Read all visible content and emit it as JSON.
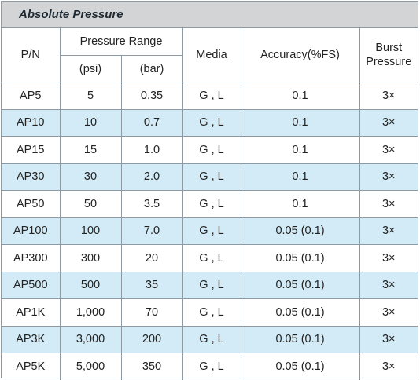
{
  "title": "Absolute Pressure",
  "headers": {
    "pn": "P/N",
    "pressure_range": "Pressure Range",
    "psi": "(psi)",
    "bar": "(bar)",
    "media": "Media",
    "accuracy": "Accuracy(%FS)",
    "burst_line1": "Burst",
    "burst_line2": "Pressure"
  },
  "rows": [
    {
      "pn": "AP5",
      "psi": "5",
      "bar": "0.35",
      "media": "G , L",
      "accuracy": "0.1",
      "burst": "3×"
    },
    {
      "pn": "AP10",
      "psi": "10",
      "bar": "0.7",
      "media": "G , L",
      "accuracy": "0.1",
      "burst": "3×"
    },
    {
      "pn": "AP15",
      "psi": "15",
      "bar": "1.0",
      "media": "G , L",
      "accuracy": "0.1",
      "burst": "3×"
    },
    {
      "pn": "AP30",
      "psi": "30",
      "bar": "2.0",
      "media": "G , L",
      "accuracy": "0.1",
      "burst": "3×"
    },
    {
      "pn": "AP50",
      "psi": "50",
      "bar": "3.5",
      "media": "G , L",
      "accuracy": "0.1",
      "burst": "3×"
    },
    {
      "pn": "AP100",
      "psi": "100",
      "bar": "7.0",
      "media": "G , L",
      "accuracy": "0.05 (0.1)",
      "burst": "3×"
    },
    {
      "pn": "AP300",
      "psi": "300",
      "bar": "20",
      "media": "G , L",
      "accuracy": "0.05 (0.1)",
      "burst": "3×"
    },
    {
      "pn": "AP500",
      "psi": "500",
      "bar": "35",
      "media": "G , L",
      "accuracy": "0.05 (0.1)",
      "burst": "3×"
    },
    {
      "pn": "AP1K",
      "psi": "1,000",
      "bar": "70",
      "media": "G , L",
      "accuracy": "0.05 (0.1)",
      "burst": "3×"
    },
    {
      "pn": "AP3K",
      "psi": "3,000",
      "bar": "200",
      "media": "G , L",
      "accuracy": "0.05 (0.1)",
      "burst": "3×"
    },
    {
      "pn": "AP5K",
      "psi": "5,000",
      "bar": "350",
      "media": "G , L",
      "accuracy": "0.05 (0.1)",
      "burst": "3×"
    }
  ],
  "colors": {
    "title_bg": "#d2d4d5",
    "alt_row_bg": "#d3ebf6",
    "border": "#8e9aa3"
  }
}
